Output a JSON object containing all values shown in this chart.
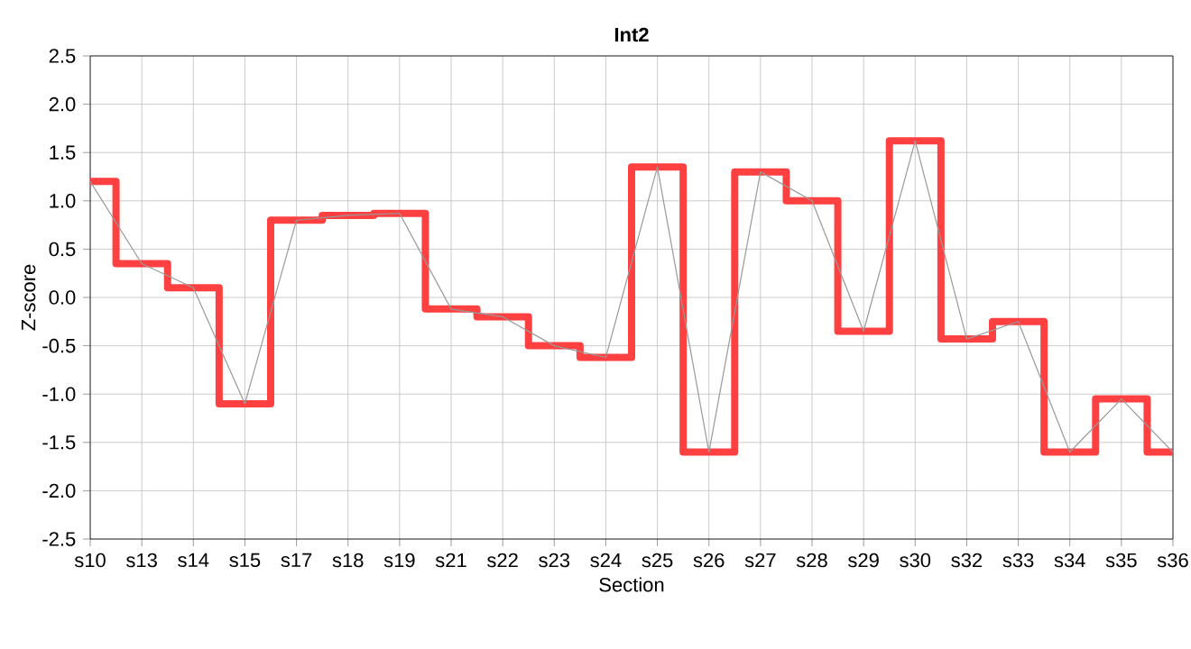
{
  "chart_data": {
    "type": "line",
    "title": "Int2",
    "xlabel": "Section",
    "ylabel": "Z-score",
    "categories": [
      "s10",
      "s13",
      "s14",
      "s15",
      "s17",
      "s18",
      "s19",
      "s21",
      "s22",
      "s23",
      "s24",
      "s25",
      "s26",
      "s27",
      "s28",
      "s29",
      "s30",
      "s32",
      "s33",
      "s34",
      "s35",
      "s36"
    ],
    "series": [
      {
        "type": "step",
        "color": "#ff4040",
        "values": [
          1.2,
          0.35,
          0.1,
          -1.1,
          0.8,
          0.85,
          0.87,
          -0.12,
          -0.2,
          -0.5,
          -0.62,
          1.35,
          -1.6,
          1.3,
          1.0,
          -0.35,
          1.62,
          -0.43,
          -0.25,
          -1.6,
          -1.05,
          -1.6
        ]
      },
      {
        "color": "#999999",
        "values": [
          1.2,
          0.35,
          0.1,
          -1.1,
          0.8,
          0.85,
          0.87,
          -0.12,
          -0.2,
          -0.5,
          -0.62,
          1.35,
          -1.6,
          1.3,
          1.0,
          -0.35,
          1.62,
          -0.43,
          -0.25,
          -1.6,
          -1.05,
          -1.6
        ]
      }
    ],
    "ylim": [
      -2.5,
      2.5
    ],
    "yticks": [
      -2.5,
      {
        "value": -2,
        "label": "-2.0"
      },
      -1.5,
      {
        "value": -1,
        "label": "-1.0"
      },
      -0.5,
      {
        "value": 0,
        "label": "0.0"
      },
      0.5,
      {
        "value": 1,
        "label": "1.0"
      },
      1.5,
      {
        "value": 2,
        "label": "2.0"
      },
      2.5
    ],
    "grid": true,
    "marker": "none",
    "line_style": "solid"
  }
}
